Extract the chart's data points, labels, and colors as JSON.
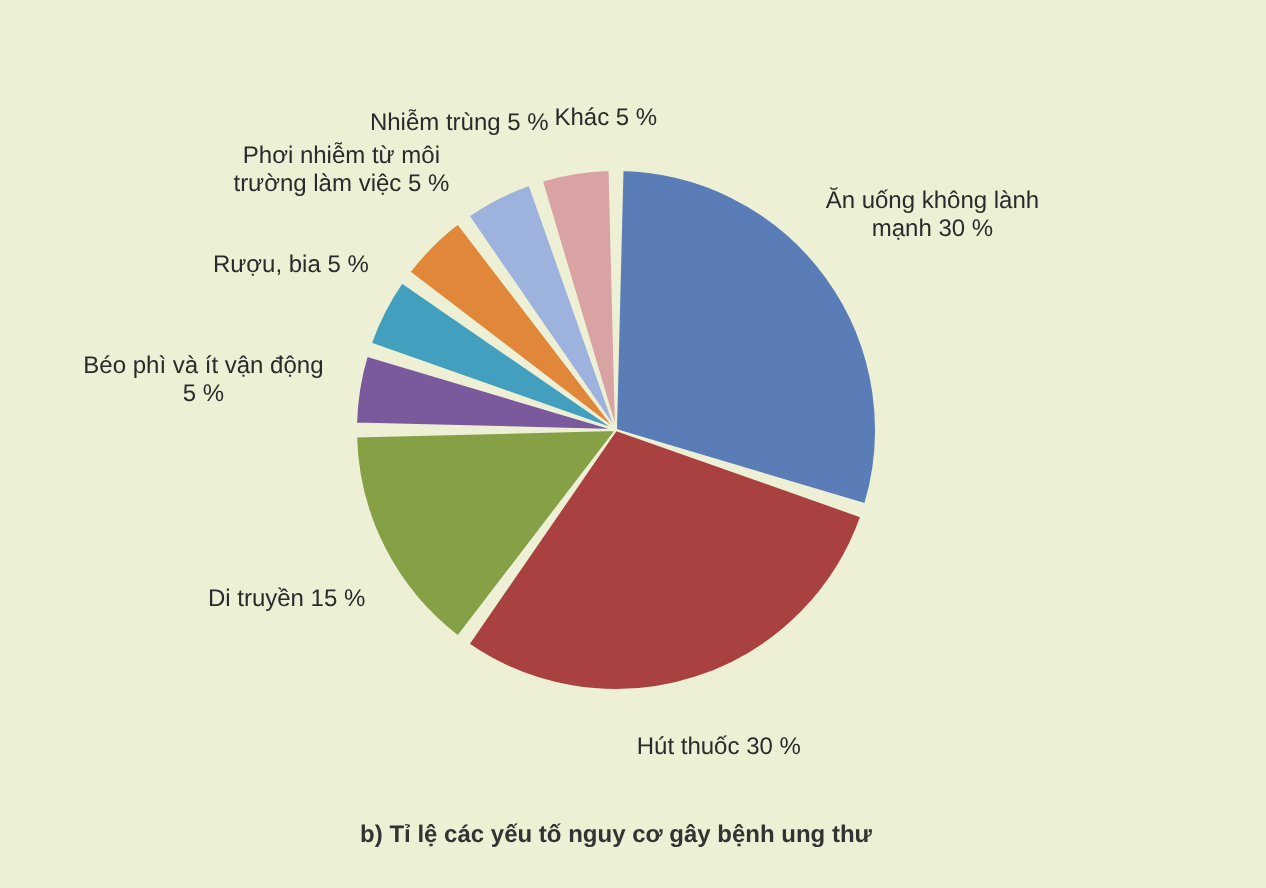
{
  "chart_data": {
    "type": "pie",
    "title": "b) Tỉ lệ các yếu tố nguy cơ gây bệnh ung thư",
    "categories": [
      "Ăn uống không lành mạnh",
      "Hút thuốc",
      "Di truyền",
      "Béo phì và ít vận động",
      "Rượu, bia",
      "Phơi nhiễm từ môi trường làm việc",
      "Nhiễm trùng",
      "Khác"
    ],
    "values": [
      30,
      30,
      15,
      5,
      5,
      5,
      5,
      5
    ],
    "value_labels": [
      "30 %",
      "30 %",
      "15 %",
      "5 %",
      "5 %",
      "5 %",
      "5 %",
      "5 %"
    ],
    "colors": [
      "#5a7db8",
      "#a8413f",
      "#86a045",
      "#7a5a9c",
      "#42a0be",
      "#e0873a",
      "#9db2dc",
      "#d9a3a3"
    ],
    "legend": false
  }
}
